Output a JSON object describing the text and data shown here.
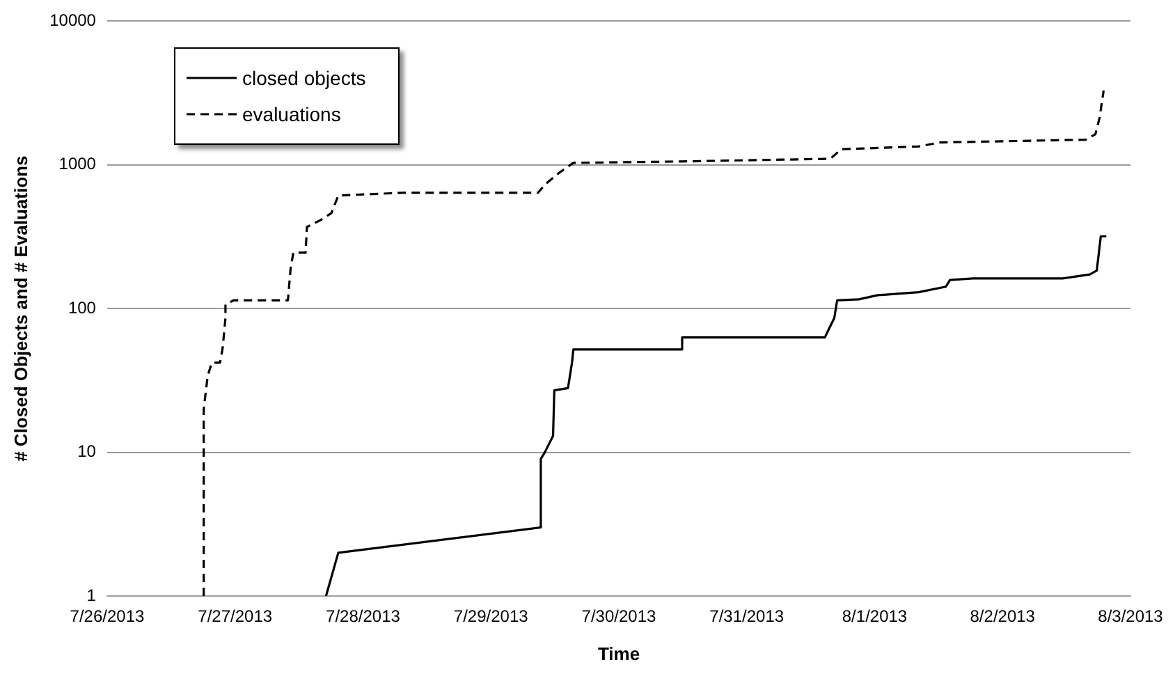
{
  "chart_data": {
    "type": "line",
    "xlabel": "Time",
    "ylabel": "# Closed Objects and # Evaluations",
    "log": "y",
    "grid": "y",
    "legend": "top left",
    "marker": "none",
    "xlim": [
      "2013-07-26",
      "2013-08-03"
    ],
    "xticks": [
      {
        "value": "2013-07-26",
        "label": "7/26/2013"
      },
      {
        "value": "2013-07-27",
        "label": "7/27/2013"
      },
      {
        "value": "2013-07-28",
        "label": "7/28/2013"
      },
      {
        "value": "2013-07-29",
        "label": "7/29/2013"
      },
      {
        "value": "2013-07-30",
        "label": "7/30/2013"
      },
      {
        "value": "2013-07-31",
        "label": "7/31/2013"
      },
      {
        "value": "2013-08-01",
        "label": "8/1/2013"
      },
      {
        "value": "2013-08-02",
        "label": "8/2/2013"
      },
      {
        "value": "2013-08-03",
        "label": "8/3/2013"
      }
    ],
    "ylim": [
      1,
      10000
    ],
    "yticks": [
      1,
      10,
      100,
      1000,
      10000
    ],
    "series": [
      {
        "name": "closed objects",
        "color": "#000000",
        "line_style": "solid",
        "x": [
          "2013-07-27T17:04",
          "2013-07-27T19:22",
          "2013-07-29T09:22",
          "2013-07-29T09:22",
          "2013-07-29T10:07",
          "2013-07-29T11:40",
          "2013-07-29T11:54",
          "2013-07-29T14:28",
          "2013-07-29T15:13",
          "2013-07-29T15:29",
          "2013-07-30T11:53",
          "2013-07-30T11:53",
          "2013-07-31T14:40",
          "2013-07-31T15:10",
          "2013-07-31T16:26",
          "2013-07-31T16:58",
          "2013-07-31T21:03",
          "2013-08-01T00:37",
          "2013-08-01T08:15",
          "2013-08-01T13:22",
          "2013-08-01T14:08",
          "2013-08-01T18:27",
          "2013-08-02T11:18",
          "2013-08-02T16:23",
          "2013-08-02T17:41",
          "2013-08-02T18:26",
          "2013-08-02T19:28"
        ],
        "values": [
          1,
          2,
          3,
          9,
          10,
          13,
          27,
          28,
          42,
          52,
          52,
          63,
          63,
          69,
          86,
          114,
          116,
          124,
          130,
          142,
          158,
          162,
          162,
          173,
          184,
          318,
          318
        ]
      },
      {
        "name": "evaluations",
        "color": "#000000",
        "line_style": "dashed",
        "x": [
          "2013-07-26T18:07",
          "2013-07-26T18:07",
          "2013-07-26T18:52",
          "2013-07-26T19:38",
          "2013-07-26T21:10",
          "2013-07-26T21:40",
          "2013-07-26T22:12",
          "2013-07-26T22:12",
          "2013-07-26T23:43",
          "2013-07-27T09:55",
          "2013-07-27T10:26",
          "2013-07-27T10:56",
          "2013-07-27T13:14",
          "2013-07-27T13:29",
          "2013-07-27T16:02",
          "2013-07-27T18:04",
          "2013-07-27T19:22",
          "2013-07-28T07:36",
          "2013-07-29T08:51",
          "2013-07-29T10:07",
          "2013-07-29T12:56",
          "2013-07-29T15:29",
          "2013-07-30T11:53",
          "2013-07-31T15:41",
          "2013-07-31T17:44",
          "2013-08-01T08:15",
          "2013-08-01T12:20",
          "2013-08-02T15:37",
          "2013-08-02T17:25",
          "2013-08-02T18:12",
          "2013-08-02T18:58"
        ],
        "values": [
          1,
          20,
          34,
          42,
          42,
          53,
          86,
          107,
          114,
          114,
          192,
          245,
          245,
          370,
          413,
          461,
          612,
          640,
          640,
          729,
          887,
          1033,
          1057,
          1103,
          1285,
          1343,
          1433,
          1497,
          1634,
          2124,
          3288
        ]
      }
    ]
  }
}
